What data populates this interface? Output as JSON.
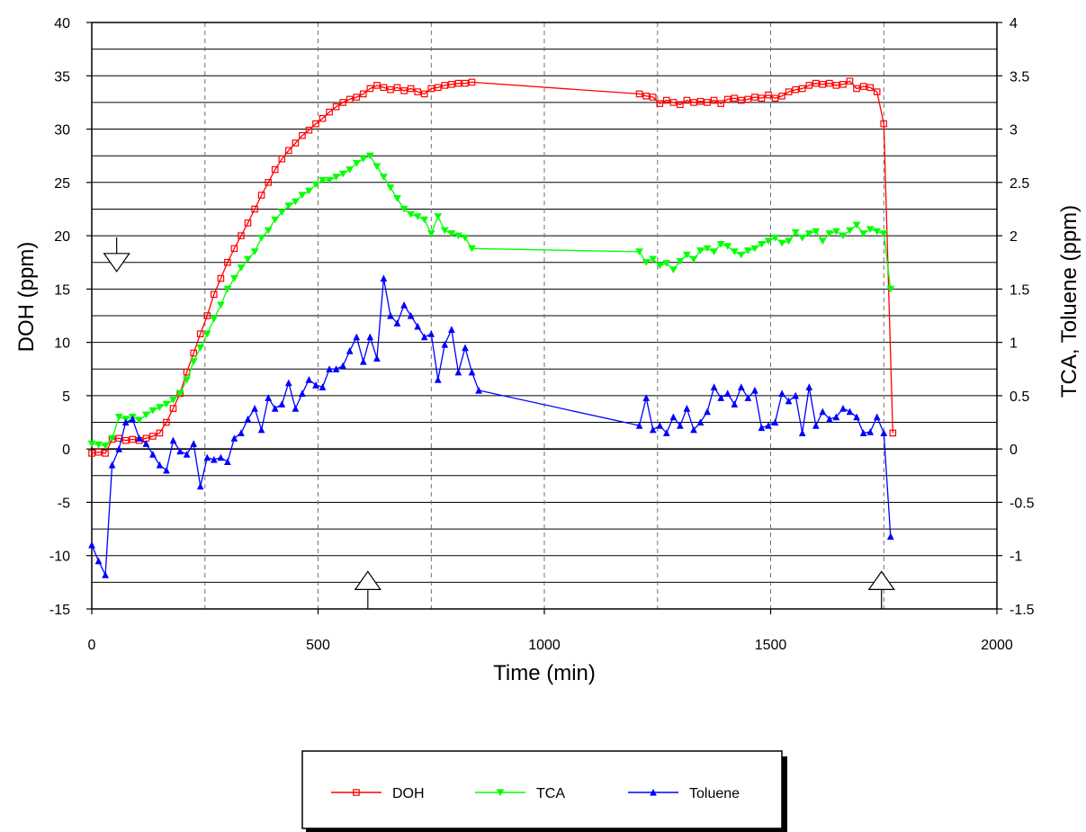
{
  "chart_data": {
    "type": "line",
    "xlabel": "Time (min)",
    "ylabel": "DOH (ppm)",
    "y2label": "TCA, Toluene (ppm)",
    "xlim": [
      0,
      2000
    ],
    "ylim": [
      -15,
      40
    ],
    "y2lim": [
      -1.5,
      4
    ],
    "x_ticks": [
      0,
      500,
      1000,
      1500,
      2000
    ],
    "y_ticks": [
      -15,
      -10,
      -5,
      0,
      5,
      10,
      15,
      20,
      25,
      30,
      35,
      40
    ],
    "y2_ticks": [
      "-1.5",
      "-1",
      "-0.5",
      "0",
      "0.5",
      "1",
      "1.5",
      "2",
      "2.5",
      "3",
      "3.5",
      "4"
    ],
    "grid": true,
    "legend_position": "bottom-center",
    "colors": {
      "DOH": "#ff0000",
      "TCA": "#00ff00",
      "Toluene": "#0000ff"
    },
    "annotations": [
      {
        "type": "arrow-down",
        "x": 55,
        "y": 18
      },
      {
        "type": "arrow-up",
        "x": 610,
        "y": -12.5
      },
      {
        "type": "arrow-up",
        "x": 1745,
        "y": -12.5
      }
    ],
    "series": [
      {
        "name": "DOH",
        "axis": "left",
        "marker": "square",
        "points": [
          [
            0,
            -0.4
          ],
          [
            15,
            -0.3
          ],
          [
            30,
            -0.4
          ],
          [
            45,
            0.9
          ],
          [
            60,
            1.0
          ],
          [
            75,
            0.8
          ],
          [
            90,
            0.9
          ],
          [
            105,
            0.8
          ],
          [
            120,
            1.0
          ],
          [
            135,
            1.2
          ],
          [
            150,
            1.5
          ],
          [
            165,
            2.5
          ],
          [
            180,
            3.8
          ],
          [
            195,
            5.2
          ],
          [
            210,
            7.2
          ],
          [
            225,
            9.0
          ],
          [
            240,
            10.8
          ],
          [
            255,
            12.5
          ],
          [
            270,
            14.5
          ],
          [
            285,
            16.0
          ],
          [
            300,
            17.5
          ],
          [
            315,
            18.8
          ],
          [
            330,
            20.0
          ],
          [
            345,
            21.2
          ],
          [
            360,
            22.5
          ],
          [
            375,
            23.8
          ],
          [
            390,
            25.0
          ],
          [
            405,
            26.2
          ],
          [
            420,
            27.2
          ],
          [
            435,
            28.0
          ],
          [
            450,
            28.7
          ],
          [
            465,
            29.4
          ],
          [
            480,
            29.9
          ],
          [
            495,
            30.5
          ],
          [
            510,
            31.0
          ],
          [
            525,
            31.6
          ],
          [
            540,
            32.1
          ],
          [
            555,
            32.5
          ],
          [
            570,
            32.8
          ],
          [
            585,
            33.0
          ],
          [
            600,
            33.3
          ],
          [
            615,
            33.8
          ],
          [
            630,
            34.1
          ],
          [
            645,
            33.9
          ],
          [
            660,
            33.7
          ],
          [
            675,
            33.9
          ],
          [
            690,
            33.6
          ],
          [
            705,
            33.8
          ],
          [
            720,
            33.5
          ],
          [
            735,
            33.3
          ],
          [
            750,
            33.8
          ],
          [
            765,
            33.9
          ],
          [
            780,
            34.1
          ],
          [
            795,
            34.2
          ],
          [
            810,
            34.3
          ],
          [
            825,
            34.3
          ],
          [
            840,
            34.4
          ],
          [
            1210,
            33.3
          ],
          [
            1225,
            33.1
          ],
          [
            1240,
            33.0
          ],
          [
            1255,
            32.4
          ],
          [
            1270,
            32.7
          ],
          [
            1285,
            32.5
          ],
          [
            1300,
            32.3
          ],
          [
            1315,
            32.7
          ],
          [
            1330,
            32.5
          ],
          [
            1345,
            32.6
          ],
          [
            1360,
            32.5
          ],
          [
            1375,
            32.7
          ],
          [
            1390,
            32.4
          ],
          [
            1405,
            32.8
          ],
          [
            1420,
            32.9
          ],
          [
            1435,
            32.7
          ],
          [
            1450,
            32.8
          ],
          [
            1465,
            33.0
          ],
          [
            1480,
            32.9
          ],
          [
            1495,
            33.2
          ],
          [
            1510,
            32.9
          ],
          [
            1525,
            33.1
          ],
          [
            1540,
            33.5
          ],
          [
            1555,
            33.7
          ],
          [
            1570,
            33.8
          ],
          [
            1585,
            34.1
          ],
          [
            1600,
            34.3
          ],
          [
            1615,
            34.2
          ],
          [
            1630,
            34.3
          ],
          [
            1645,
            34.1
          ],
          [
            1660,
            34.2
          ],
          [
            1675,
            34.5
          ],
          [
            1690,
            33.8
          ],
          [
            1705,
            34.0
          ],
          [
            1720,
            33.9
          ],
          [
            1735,
            33.5
          ],
          [
            1750,
            30.5
          ],
          [
            1770,
            1.5
          ]
        ]
      },
      {
        "name": "TCA",
        "axis": "right",
        "marker": "triangle-down",
        "points": [
          [
            0,
            0.05
          ],
          [
            15,
            0.04
          ],
          [
            30,
            0.03
          ],
          [
            45,
            0.1
          ],
          [
            60,
            0.3
          ],
          [
            75,
            0.28
          ],
          [
            90,
            0.3
          ],
          [
            105,
            0.27
          ],
          [
            120,
            0.32
          ],
          [
            135,
            0.36
          ],
          [
            150,
            0.39
          ],
          [
            165,
            0.42
          ],
          [
            180,
            0.46
          ],
          [
            195,
            0.52
          ],
          [
            210,
            0.65
          ],
          [
            225,
            0.82
          ],
          [
            240,
            0.95
          ],
          [
            255,
            1.08
          ],
          [
            270,
            1.22
          ],
          [
            285,
            1.35
          ],
          [
            300,
            1.5
          ],
          [
            315,
            1.6
          ],
          [
            330,
            1.7
          ],
          [
            345,
            1.78
          ],
          [
            360,
            1.85
          ],
          [
            375,
            1.98
          ],
          [
            390,
            2.05
          ],
          [
            405,
            2.15
          ],
          [
            420,
            2.22
          ],
          [
            435,
            2.28
          ],
          [
            450,
            2.32
          ],
          [
            465,
            2.38
          ],
          [
            480,
            2.42
          ],
          [
            495,
            2.48
          ],
          [
            510,
            2.52
          ],
          [
            525,
            2.52
          ],
          [
            540,
            2.55
          ],
          [
            555,
            2.58
          ],
          [
            570,
            2.62
          ],
          [
            585,
            2.68
          ],
          [
            600,
            2.72
          ],
          [
            615,
            2.75
          ],
          [
            630,
            2.65
          ],
          [
            645,
            2.55
          ],
          [
            660,
            2.45
          ],
          [
            675,
            2.35
          ],
          [
            690,
            2.25
          ],
          [
            705,
            2.2
          ],
          [
            720,
            2.18
          ],
          [
            735,
            2.15
          ],
          [
            750,
            2.02
          ],
          [
            765,
            2.18
          ],
          [
            780,
            2.05
          ],
          [
            795,
            2.02
          ],
          [
            810,
            2.0
          ],
          [
            825,
            1.98
          ],
          [
            840,
            1.88
          ],
          [
            1210,
            1.85
          ],
          [
            1225,
            1.75
          ],
          [
            1240,
            1.78
          ],
          [
            1255,
            1.72
          ],
          [
            1270,
            1.74
          ],
          [
            1285,
            1.68
          ],
          [
            1300,
            1.76
          ],
          [
            1315,
            1.82
          ],
          [
            1330,
            1.78
          ],
          [
            1345,
            1.86
          ],
          [
            1360,
            1.88
          ],
          [
            1375,
            1.85
          ],
          [
            1390,
            1.92
          ],
          [
            1405,
            1.9
          ],
          [
            1420,
            1.85
          ],
          [
            1435,
            1.82
          ],
          [
            1450,
            1.86
          ],
          [
            1465,
            1.88
          ],
          [
            1480,
            1.92
          ],
          [
            1495,
            1.95
          ],
          [
            1510,
            1.98
          ],
          [
            1525,
            1.93
          ],
          [
            1540,
            1.95
          ],
          [
            1555,
            2.03
          ],
          [
            1570,
            1.98
          ],
          [
            1585,
            2.02
          ],
          [
            1600,
            2.04
          ],
          [
            1615,
            1.95
          ],
          [
            1630,
            2.02
          ],
          [
            1645,
            2.04
          ],
          [
            1660,
            2.0
          ],
          [
            1675,
            2.05
          ],
          [
            1690,
            2.1
          ],
          [
            1705,
            2.02
          ],
          [
            1720,
            2.06
          ],
          [
            1735,
            2.04
          ],
          [
            1750,
            2.02
          ],
          [
            1765,
            1.5
          ]
        ]
      },
      {
        "name": "Toluene",
        "axis": "right",
        "marker": "triangle-up",
        "points": [
          [
            0,
            -0.9
          ],
          [
            15,
            -1.05
          ],
          [
            30,
            -1.18
          ],
          [
            45,
            -0.15
          ],
          [
            60,
            0.0
          ],
          [
            75,
            0.25
          ],
          [
            90,
            0.28
          ],
          [
            105,
            0.1
          ],
          [
            120,
            0.05
          ],
          [
            135,
            -0.05
          ],
          [
            150,
            -0.15
          ],
          [
            165,
            -0.2
          ],
          [
            180,
            0.08
          ],
          [
            195,
            -0.02
          ],
          [
            210,
            -0.05
          ],
          [
            225,
            0.05
          ],
          [
            240,
            -0.35
          ],
          [
            255,
            -0.08
          ],
          [
            270,
            -0.1
          ],
          [
            285,
            -0.08
          ],
          [
            300,
            -0.12
          ],
          [
            315,
            0.1
          ],
          [
            330,
            0.15
          ],
          [
            345,
            0.28
          ],
          [
            360,
            0.38
          ],
          [
            375,
            0.18
          ],
          [
            390,
            0.48
          ],
          [
            405,
            0.38
          ],
          [
            420,
            0.42
          ],
          [
            435,
            0.62
          ],
          [
            450,
            0.38
          ],
          [
            465,
            0.52
          ],
          [
            480,
            0.65
          ],
          [
            495,
            0.6
          ],
          [
            510,
            0.58
          ],
          [
            525,
            0.75
          ],
          [
            540,
            0.75
          ],
          [
            555,
            0.78
          ],
          [
            570,
            0.92
          ],
          [
            585,
            1.05
          ],
          [
            600,
            0.82
          ],
          [
            615,
            1.05
          ],
          [
            630,
            0.85
          ],
          [
            645,
            1.6
          ],
          [
            660,
            1.25
          ],
          [
            675,
            1.18
          ],
          [
            690,
            1.35
          ],
          [
            705,
            1.25
          ],
          [
            720,
            1.15
          ],
          [
            735,
            1.05
          ],
          [
            750,
            1.08
          ],
          [
            765,
            0.65
          ],
          [
            780,
            0.98
          ],
          [
            795,
            1.12
          ],
          [
            810,
            0.72
          ],
          [
            825,
            0.95
          ],
          [
            840,
            0.72
          ],
          [
            855,
            0.55
          ],
          [
            1210,
            0.22
          ],
          [
            1225,
            0.48
          ],
          [
            1240,
            0.18
          ],
          [
            1255,
            0.22
          ],
          [
            1270,
            0.15
          ],
          [
            1285,
            0.3
          ],
          [
            1300,
            0.22
          ],
          [
            1315,
            0.38
          ],
          [
            1330,
            0.18
          ],
          [
            1345,
            0.25
          ],
          [
            1360,
            0.35
          ],
          [
            1375,
            0.58
          ],
          [
            1390,
            0.48
          ],
          [
            1405,
            0.52
          ],
          [
            1420,
            0.42
          ],
          [
            1435,
            0.58
          ],
          [
            1450,
            0.48
          ],
          [
            1465,
            0.55
          ],
          [
            1480,
            0.2
          ],
          [
            1495,
            0.22
          ],
          [
            1510,
            0.25
          ],
          [
            1525,
            0.52
          ],
          [
            1540,
            0.45
          ],
          [
            1555,
            0.5
          ],
          [
            1570,
            0.15
          ],
          [
            1585,
            0.58
          ],
          [
            1600,
            0.22
          ],
          [
            1615,
            0.35
          ],
          [
            1630,
            0.28
          ],
          [
            1645,
            0.3
          ],
          [
            1660,
            0.38
          ],
          [
            1675,
            0.35
          ],
          [
            1690,
            0.3
          ],
          [
            1705,
            0.15
          ],
          [
            1720,
            0.16
          ],
          [
            1735,
            0.3
          ],
          [
            1750,
            0.15
          ],
          [
            1765,
            -0.82
          ]
        ]
      }
    ]
  }
}
